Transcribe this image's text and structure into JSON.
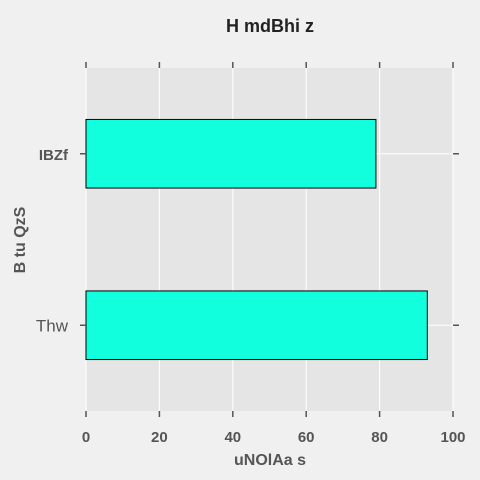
{
  "chart_data": {
    "type": "bar",
    "orientation": "horizontal",
    "title": "H mdBhi z",
    "xlabel": "uNOlAa s",
    "ylabel": "B tu QzS",
    "categories": [
      "IBZf",
      "Thw"
    ],
    "values": [
      79,
      93
    ],
    "xlim": [
      0,
      100
    ],
    "xticks": [
      "0",
      "20",
      "40",
      "60",
      "80",
      "100"
    ],
    "grid": true,
    "legend": "none",
    "colors": {
      "bar_fill": "#11ffdd",
      "bar_edge": "#000000",
      "plot_background": "#e5e5e5",
      "page_background": "#f0f0f0",
      "grid": "#ffffff",
      "text": "#555555",
      "title": "#222222"
    }
  }
}
